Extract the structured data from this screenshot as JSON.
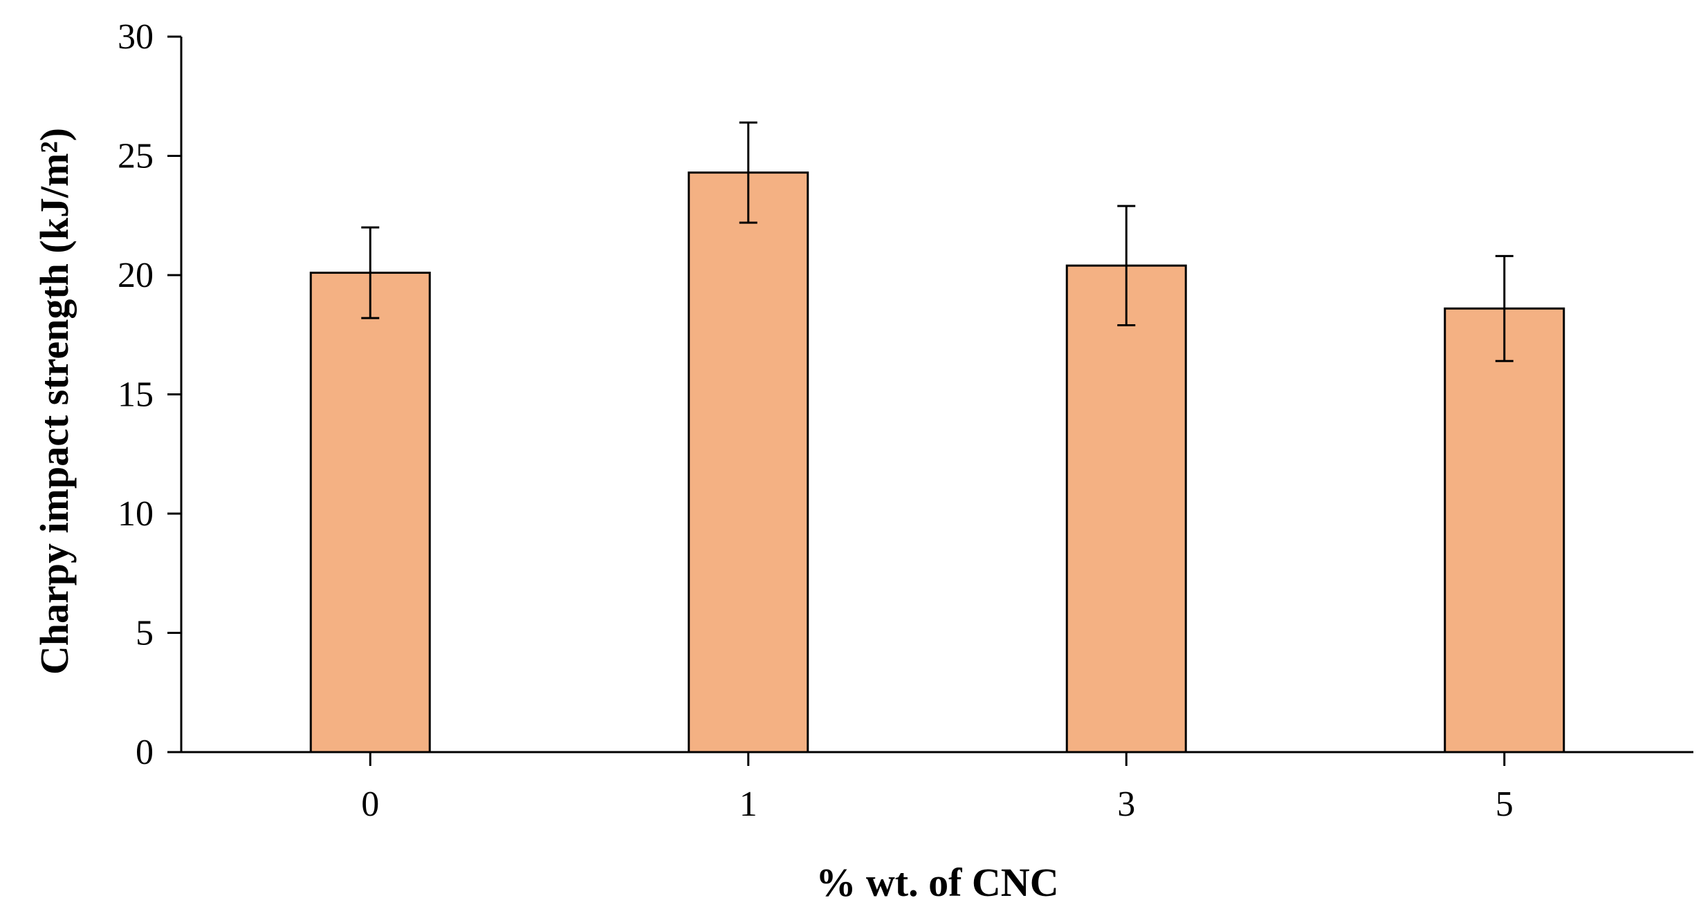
{
  "chart_data": {
    "type": "bar",
    "categories": [
      "0",
      "1",
      "3",
      "5"
    ],
    "values": [
      20.1,
      24.3,
      20.4,
      18.6
    ],
    "errors": [
      1.9,
      2.1,
      2.5,
      2.2
    ],
    "xlabel": "% wt. of CNC",
    "ylabel": "Charpy impact strength (kJ/m²)",
    "ylim": [
      0,
      30
    ],
    "yticks": [
      "0",
      "5",
      "10",
      "15",
      "20",
      "25",
      "30"
    ],
    "grid": false,
    "bar_color": "#F4B183",
    "bar_edge_color": "#000000"
  }
}
